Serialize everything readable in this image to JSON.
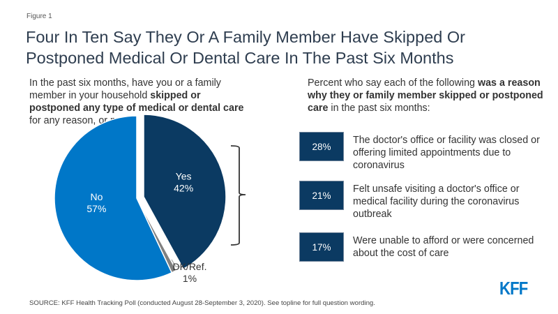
{
  "figure_label": "Figure 1",
  "title": "Four In Ten Say They Or A Family Member Have Skipped Or Postponed Medical Or Dental Care In The Past Six Months",
  "left_question": {
    "part1": "In the past six months, have you or a family member in your household ",
    "bold": "skipped or postponed any type of medical or dental care",
    "part2": " for any reason, or not?"
  },
  "right_question": {
    "part1": "Percent who say each of the following ",
    "bold": "was a reason why they or family member skipped or postponed care",
    "part2": " in the past six months:"
  },
  "colors": {
    "yes": "#0b3a62",
    "no": "#0077c8",
    "dk": "#808080",
    "box": "#0b3a62",
    "logo": "#0077c8"
  },
  "chart_data": [
    {
      "type": "pie",
      "title": "In the past six months, have you or a family member in your household skipped or postponed any type of medical or dental care for any reason, or not?",
      "slices": [
        {
          "label": "Yes",
          "value": 42,
          "value_label": "42%",
          "exploded": true
        },
        {
          "label": "DK/Ref.",
          "value": 1,
          "value_label": "1%",
          "exploded": false
        },
        {
          "label": "No",
          "value": 57,
          "value_label": "57%",
          "exploded": false
        }
      ],
      "start": "12 o'clock",
      "direction": "clockwise"
    },
    {
      "type": "table",
      "title": "Percent who say each of the following was a reason why they or family member skipped or postponed care in the past six months:",
      "rows": [
        {
          "value": 28,
          "value_label": "28%",
          "label": "The doctor's office or facility was closed or offering limited appointments due to coronavirus"
        },
        {
          "value": 21,
          "value_label": "21%",
          "label": "Felt unsafe visiting a doctor's office or medical facility during the coronavirus outbreak"
        },
        {
          "value": 17,
          "value_label": "17%",
          "label": "Were unable to afford or were concerned about the cost of care"
        }
      ]
    }
  ],
  "source": "SOURCE: KFF Health Tracking Poll (conducted August 28-September 3, 2020). See topline for full question wording.",
  "logo": "KFF"
}
